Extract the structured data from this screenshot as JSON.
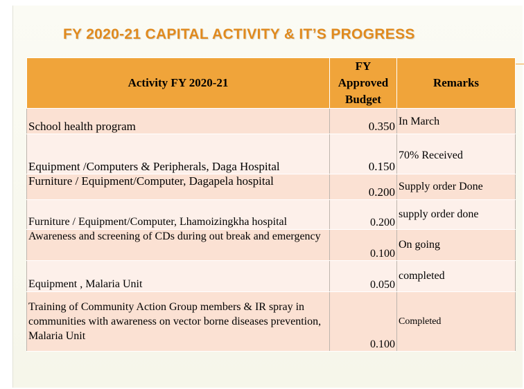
{
  "slide": {
    "title": "FY 2020-21 CAPITAL ACTIVITY & IT’S PROGRESS"
  },
  "table": {
    "headers": {
      "activity": "Activity FY 2020-21",
      "budget_line1": "FY",
      "budget_line2": "Approved",
      "budget_line3": "Budget",
      "remarks": "Remarks"
    },
    "rows": [
      {
        "activity": "School health program",
        "budget": "0.350",
        "remark": "In March"
      },
      {
        "activity": "Equipment /Computers & Peripherals, Daga Hospital",
        "budget": "0.150",
        "remark": "70% Received"
      },
      {
        "activity": "Furniture / Equipment/Computer, Dagapela hospital",
        "budget": "0.200",
        "remark": "Supply order Done"
      },
      {
        "activity": "Furniture / Equipment/Computer, Lhamoizingkha hospital",
        "budget": "0.200",
        "remark": "supply order done"
      },
      {
        "activity": "Awareness and screening of CDs during out break and emergency",
        "budget": "0.100",
        "remark": "On going"
      },
      {
        "activity": "Equipment , Malaria Unit",
        "budget": "0.050",
        "remark": "completed"
      },
      {
        "activity": "Training of Community Action Group members & IR spray in communities with awareness on vector borne diseases prevention, Malaria Unit",
        "budget": "0.100",
        "remark": "Completed"
      }
    ]
  }
}
